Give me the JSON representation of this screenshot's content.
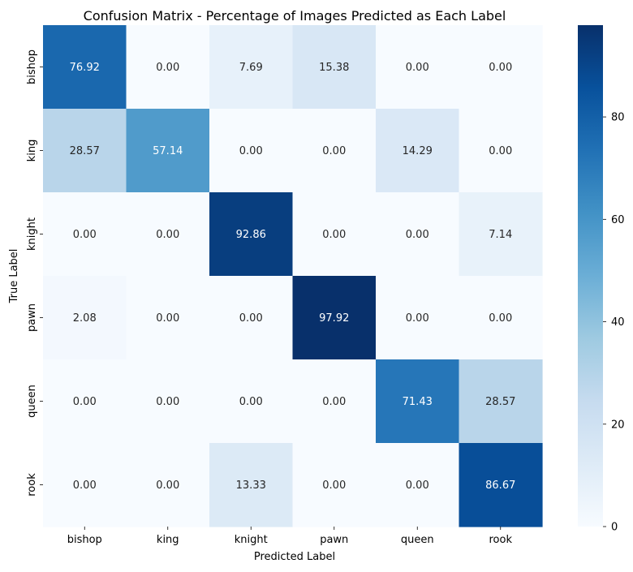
{
  "chart_data": {
    "type": "heatmap",
    "title": "Confusion Matrix - Percentage of Images Predicted as Each Label",
    "xlabel": "Predicted Label",
    "ylabel": "True Label",
    "x_categories": [
      "bishop",
      "king",
      "knight",
      "pawn",
      "queen",
      "rook"
    ],
    "y_categories": [
      "bishop",
      "king",
      "knight",
      "pawn",
      "queen",
      "rook"
    ],
    "values": [
      [
        76.92,
        0.0,
        7.69,
        15.38,
        0.0,
        0.0
      ],
      [
        28.57,
        57.14,
        0.0,
        0.0,
        14.29,
        0.0
      ],
      [
        0.0,
        0.0,
        92.86,
        0.0,
        0.0,
        7.14
      ],
      [
        2.08,
        0.0,
        0.0,
        97.92,
        0.0,
        0.0
      ],
      [
        0.0,
        0.0,
        0.0,
        0.0,
        71.43,
        28.57
      ],
      [
        0.0,
        0.0,
        13.33,
        0.0,
        0.0,
        86.67
      ]
    ],
    "value_format": "2 decimals",
    "colormap": "Blues",
    "vmin": 0,
    "vmax": 97.92,
    "colorbar_ticks": [
      0,
      20,
      40,
      60,
      80
    ],
    "colorbar_side": "right"
  }
}
